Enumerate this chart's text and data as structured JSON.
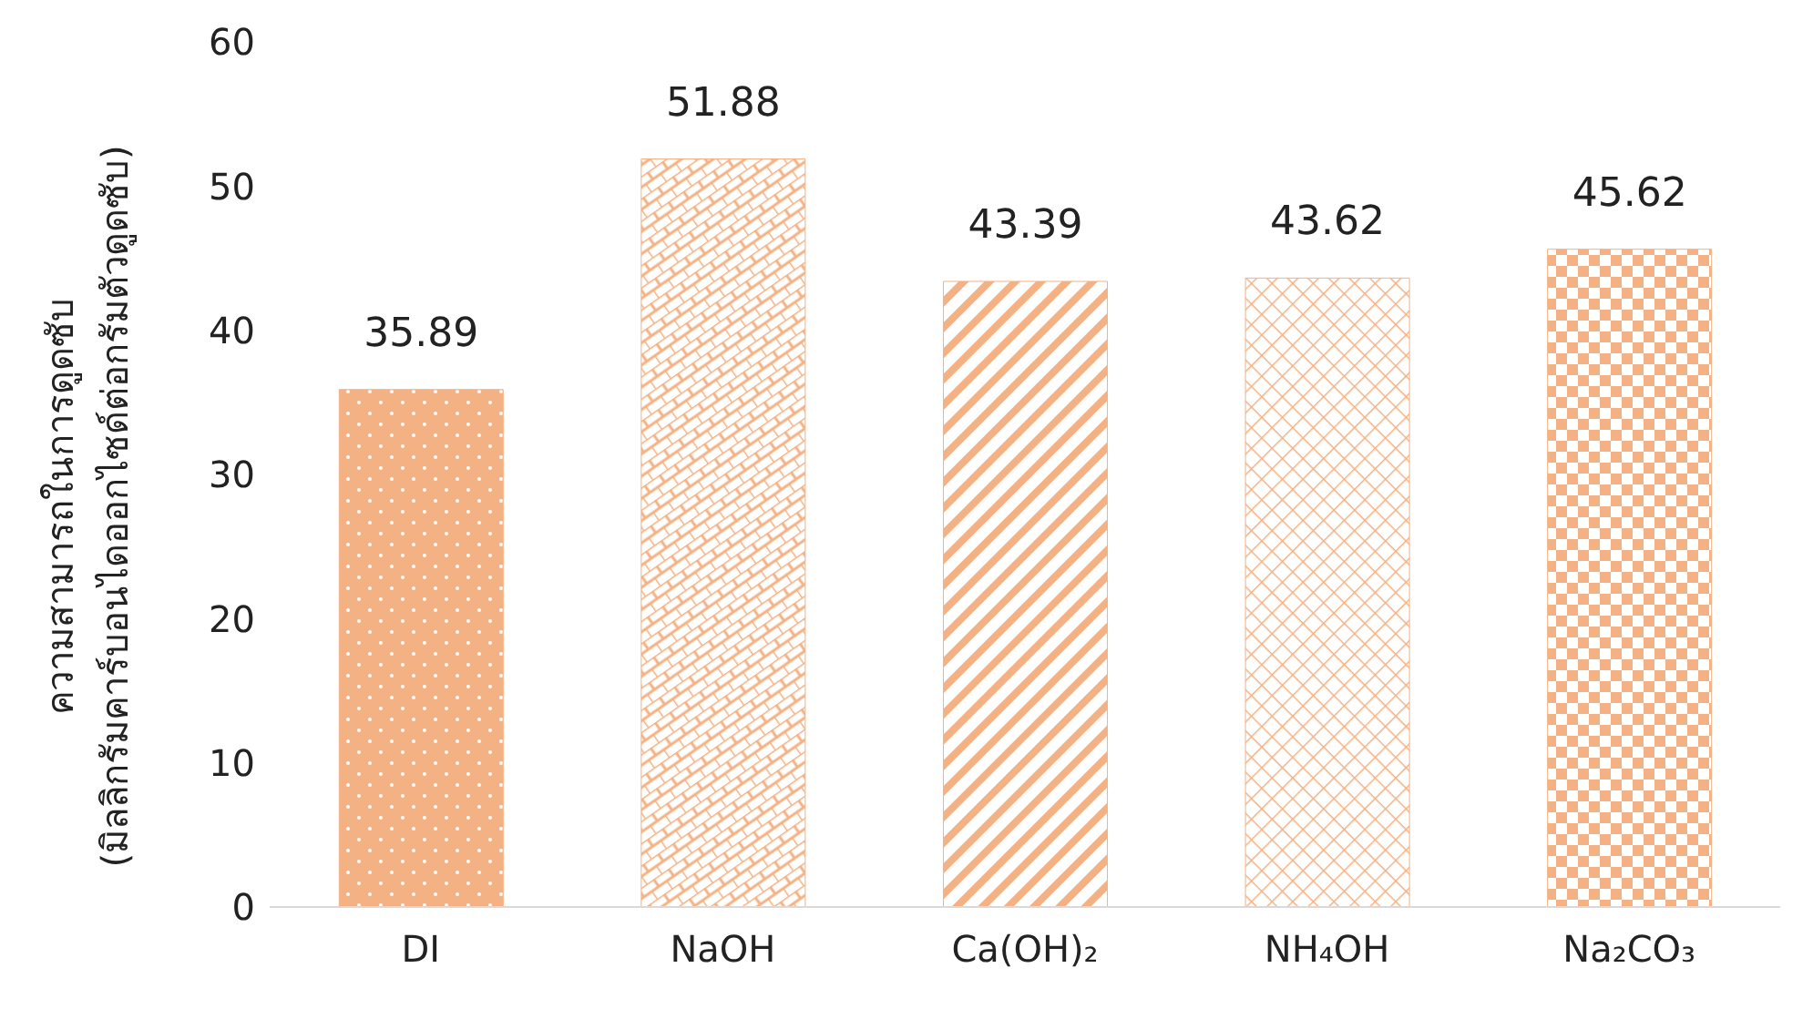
{
  "chart_data": {
    "type": "bar",
    "ylabel": "ความสามารถในการดูดซับ\n(มิลลิกรัมคาร์บอนไดออกไซด์ต่อกรัมตัวดูดซับ)",
    "categories": [
      "DI",
      "NaOH",
      "Ca(OH)₂",
      "NH₄OH",
      "Na₂CO₃"
    ],
    "values": [
      35.89,
      51.88,
      43.39,
      43.62,
      45.62
    ],
    "colors": [
      "#f4b183",
      "#f4b183",
      "#f4b183",
      "#f4b183",
      "#f4b183"
    ],
    "ylim": [
      0,
      60
    ],
    "yticks": [
      0,
      10,
      20,
      30,
      40,
      50,
      60
    ],
    "data_labels": true,
    "grid": false,
    "legend": false
  }
}
